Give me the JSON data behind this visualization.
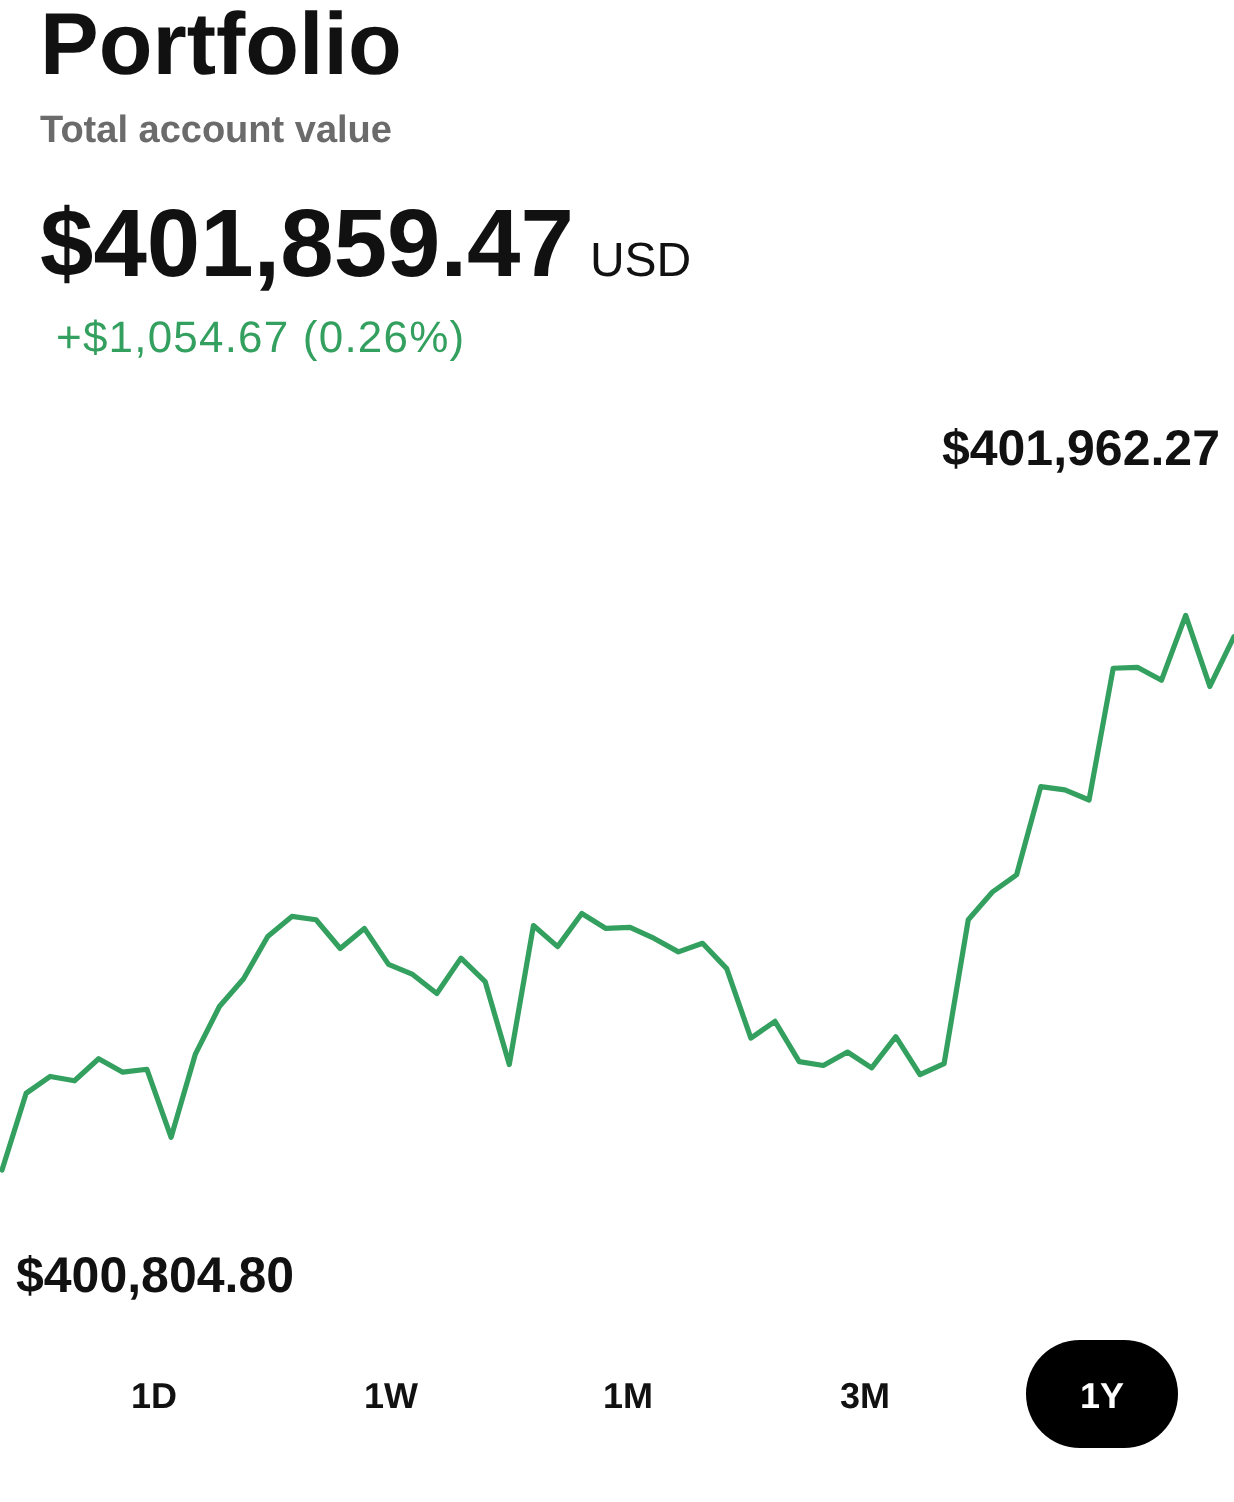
{
  "chart_data": {
    "type": "line",
    "title": "Portfolio",
    "subtitle": "Total account value",
    "categories": [
      null,
      null,
      null,
      null,
      null,
      null,
      null,
      null,
      null,
      null,
      null,
      null,
      null,
      null,
      null,
      null,
      null,
      null,
      null,
      null,
      null,
      null,
      null,
      null,
      null,
      null,
      null,
      null,
      null,
      null,
      null,
      null,
      null,
      null,
      null,
      null,
      null,
      null,
      null,
      null,
      null,
      null,
      null,
      null,
      null,
      null,
      null,
      null,
      null,
      null,
      null,
      null
    ],
    "series": [
      {
        "color": "#34a05f",
        "values": [
          400804.8,
          400965,
          401000,
          400991,
          401037,
          401009,
          401015,
          400873,
          401046,
          401146,
          401204,
          401292,
          401334,
          401327,
          401267,
          401309,
          401234,
          401213,
          401173,
          401247,
          401198,
          401025,
          401315,
          401271,
          401340,
          401309,
          401311,
          401288,
          401260,
          401278,
          401225,
          401080,
          401115,
          401031,
          401023,
          401051,
          401018,
          401083,
          401004,
          401027,
          401327,
          401385,
          401421,
          401605,
          401598,
          401577,
          401852,
          401854,
          401827,
          401962.27,
          401814,
          401918
        ],
        "value_labels": [
          "$400,804.80",
          null,
          null,
          null,
          null,
          null,
          null,
          null,
          null,
          null,
          null,
          null,
          null,
          null,
          null,
          null,
          null,
          null,
          null,
          null,
          null,
          null,
          null,
          null,
          null,
          null,
          null,
          null,
          null,
          null,
          null,
          null,
          null,
          null,
          null,
          null,
          null,
          null,
          null,
          null,
          null,
          null,
          null,
          null,
          null,
          null,
          null,
          null,
          null,
          "$401,962.27",
          null,
          null
        ]
      }
    ],
    "annotations": [
      "$401,859.47",
      "USD",
      "+$1,054.67 (0.26%)",
      "1D",
      "1W",
      "1M",
      "3M",
      "1Y"
    ]
  }
}
